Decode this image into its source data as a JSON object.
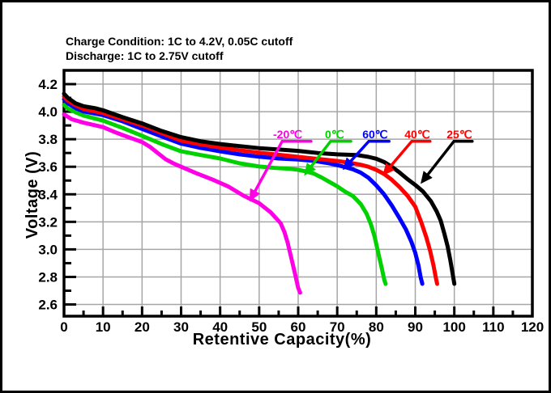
{
  "frame": {
    "border_color": "#000000",
    "background": "#ffffff"
  },
  "title": {
    "line1": "Charge Condition: 1C to 4.2V, 0.05C cutoff",
    "line2": "Discharge: 1C to 2.75V cutoff"
  },
  "chart_data": {
    "type": "line",
    "xlabel": "Retentive Capacity(%)",
    "ylabel": "Voltage (V)",
    "xlim": [
      0,
      120
    ],
    "ylim": [
      2.515,
      4.3
    ],
    "x_ticks": [
      0,
      10,
      20,
      30,
      40,
      50,
      60,
      70,
      80,
      90,
      100,
      110,
      120
    ],
    "x_minor_tick_step": 5,
    "y_ticks": [
      2.6,
      2.8,
      3.0,
      3.2,
      3.4,
      3.6,
      3.8,
      4.0,
      4.2
    ],
    "y_tick_labels": [
      "2.6",
      "2.8",
      "3.0",
      "3.2",
      "3.4",
      "3.6",
      "3.8",
      "4.0",
      "4.2"
    ],
    "y_minor_tick_step": 0.1,
    "grid": {
      "show": true,
      "color": "#a6a6a6",
      "x_step": 10,
      "y_step": 0.2
    },
    "axis_color": "#000000",
    "series": [
      {
        "id": "minus20c",
        "name": "-20℃",
        "color": "#ff00e6",
        "label_color": "#ff00e6",
        "annotation": {
          "text": "-20℃",
          "text_pos": [
            57.3,
            3.806
          ],
          "line": [
            [
              63.3,
              3.785
            ],
            [
              55.9,
              3.785
            ],
            [
              47.5,
              3.347
            ]
          ]
        },
        "points": [
          [
            0,
            3.98
          ],
          [
            2,
            3.945
          ],
          [
            5,
            3.92
          ],
          [
            10,
            3.888
          ],
          [
            13,
            3.852
          ],
          [
            15,
            3.83
          ],
          [
            18,
            3.8
          ],
          [
            20,
            3.78
          ],
          [
            22,
            3.745
          ],
          [
            24,
            3.7
          ],
          [
            26,
            3.655
          ],
          [
            28,
            3.625
          ],
          [
            30,
            3.6
          ],
          [
            34,
            3.552
          ],
          [
            38,
            3.508
          ],
          [
            42,
            3.458
          ],
          [
            46,
            3.39
          ],
          [
            50,
            3.335
          ],
          [
            53,
            3.268
          ],
          [
            55.5,
            3.19
          ],
          [
            56.5,
            3.125
          ],
          [
            57.3,
            3.048
          ],
          [
            58.3,
            2.93
          ],
          [
            59.3,
            2.81
          ],
          [
            60,
            2.72
          ],
          [
            60.5,
            2.686
          ]
        ]
      },
      {
        "id": "0c",
        "name": "0℃",
        "color": "#00d200",
        "label_color": "#00d200",
        "annotation": {
          "text": "0℃",
          "text_pos": [
            69.3,
            3.806
          ],
          "line": [
            [
              73.5,
              3.785
            ],
            [
              68.3,
              3.785
            ],
            [
              61.5,
              3.535
            ]
          ]
        },
        "points": [
          [
            0,
            4.05
          ],
          [
            1,
            4.022
          ],
          [
            3,
            3.995
          ],
          [
            5,
            3.972
          ],
          [
            10,
            3.935
          ],
          [
            15,
            3.882
          ],
          [
            20,
            3.825
          ],
          [
            25,
            3.765
          ],
          [
            30,
            3.712
          ],
          [
            35,
            3.685
          ],
          [
            40,
            3.66
          ],
          [
            45,
            3.625
          ],
          [
            50,
            3.602
          ],
          [
            54,
            3.592
          ],
          [
            58,
            3.585
          ],
          [
            60,
            3.578
          ],
          [
            62,
            3.566
          ],
          [
            64,
            3.55
          ],
          [
            66,
            3.522
          ],
          [
            68,
            3.49
          ],
          [
            70,
            3.458
          ],
          [
            72,
            3.42
          ],
          [
            74,
            3.388
          ],
          [
            76,
            3.33
          ],
          [
            77.5,
            3.26
          ],
          [
            78.6,
            3.185
          ],
          [
            79.6,
            3.09
          ],
          [
            80.6,
            2.965
          ],
          [
            81.4,
            2.865
          ],
          [
            82.1,
            2.775
          ],
          [
            82.4,
            2.75
          ]
        ]
      },
      {
        "id": "60c",
        "name": "60℃",
        "color": "#0000ff",
        "label_color": "#0000ff",
        "annotation": {
          "text": "60℃",
          "text_pos": [
            79.7,
            3.806
          ],
          "line": [
            [
              83.3,
              3.785
            ],
            [
              78.1,
              3.785
            ],
            [
              71.4,
              3.576
            ]
          ]
        },
        "points": [
          [
            0,
            4.09
          ],
          [
            1,
            4.06
          ],
          [
            3,
            4.025
          ],
          [
            5,
            4.002
          ],
          [
            10,
            3.975
          ],
          [
            15,
            3.93
          ],
          [
            20,
            3.875
          ],
          [
            25,
            3.82
          ],
          [
            30,
            3.768
          ],
          [
            35,
            3.737
          ],
          [
            40,
            3.712
          ],
          [
            45,
            3.69
          ],
          [
            50,
            3.673
          ],
          [
            55,
            3.66
          ],
          [
            60,
            3.653
          ],
          [
            64,
            3.643
          ],
          [
            68,
            3.625
          ],
          [
            70,
            3.612
          ],
          [
            72,
            3.598
          ],
          [
            74,
            3.582
          ],
          [
            76,
            3.558
          ],
          [
            78,
            3.52
          ],
          [
            80,
            3.465
          ],
          [
            82,
            3.4
          ],
          [
            84,
            3.318
          ],
          [
            86,
            3.225
          ],
          [
            87.6,
            3.145
          ],
          [
            89,
            3.055
          ],
          [
            90,
            2.975
          ],
          [
            90.8,
            2.885
          ],
          [
            91.4,
            2.795
          ],
          [
            91.8,
            2.75
          ]
        ]
      },
      {
        "id": "40c",
        "name": "40℃",
        "color": "#ff0000",
        "label_color": "#ff0000",
        "annotation": {
          "text": "40℃",
          "text_pos": [
            90.5,
            3.806
          ],
          "line": [
            [
              93.8,
              3.785
            ],
            [
              89.1,
              3.785
            ],
            [
              81.6,
              3.535
            ]
          ]
        },
        "points": [
          [
            0,
            4.11
          ],
          [
            1,
            4.08
          ],
          [
            3,
            4.045
          ],
          [
            5,
            4.02
          ],
          [
            10,
            3.99
          ],
          [
            15,
            3.945
          ],
          [
            20,
            3.9
          ],
          [
            25,
            3.845
          ],
          [
            30,
            3.79
          ],
          [
            35,
            3.762
          ],
          [
            40,
            3.74
          ],
          [
            45,
            3.72
          ],
          [
            50,
            3.702
          ],
          [
            55,
            3.687
          ],
          [
            60,
            3.672
          ],
          [
            65,
            3.657
          ],
          [
            70,
            3.642
          ],
          [
            73,
            3.63
          ],
          [
            76,
            3.615
          ],
          [
            78,
            3.6
          ],
          [
            80,
            3.578
          ],
          [
            82,
            3.548
          ],
          [
            84,
            3.505
          ],
          [
            86,
            3.452
          ],
          [
            88,
            3.39
          ],
          [
            90,
            3.31
          ],
          [
            91.5,
            3.2
          ],
          [
            92.8,
            3.09
          ],
          [
            93.8,
            2.99
          ],
          [
            94.7,
            2.88
          ],
          [
            95.3,
            2.79
          ],
          [
            95.6,
            2.75
          ]
        ]
      },
      {
        "id": "25c",
        "name": "25℃",
        "color": "#000000",
        "label_color": "#ff0000",
        "annotation": {
          "text": "25℃",
          "text_pos": [
            101.3,
            3.806
          ],
          "line": [
            [
              104.6,
              3.785
            ],
            [
              99.9,
              3.785
            ],
            [
              91.35,
              3.476
            ]
          ]
        },
        "points": [
          [
            0,
            4.13
          ],
          [
            1,
            4.1
          ],
          [
            3,
            4.06
          ],
          [
            5,
            4.04
          ],
          [
            8,
            4.025
          ],
          [
            10,
            4.01
          ],
          [
            15,
            3.96
          ],
          [
            20,
            3.915
          ],
          [
            25,
            3.86
          ],
          [
            30,
            3.815
          ],
          [
            35,
            3.785
          ],
          [
            40,
            3.765
          ],
          [
            45,
            3.75
          ],
          [
            50,
            3.735
          ],
          [
            55,
            3.725
          ],
          [
            60,
            3.715
          ],
          [
            65,
            3.7
          ],
          [
            70,
            3.69
          ],
          [
            75,
            3.685
          ],
          [
            78,
            3.672
          ],
          [
            80,
            3.658
          ],
          [
            82,
            3.635
          ],
          [
            84,
            3.6
          ],
          [
            86,
            3.558
          ],
          [
            88,
            3.51
          ],
          [
            90,
            3.468
          ],
          [
            92,
            3.42
          ],
          [
            94,
            3.35
          ],
          [
            95.5,
            3.275
          ],
          [
            96.5,
            3.21
          ],
          [
            97.5,
            3.11
          ],
          [
            98.3,
            3.02
          ],
          [
            99,
            2.92
          ],
          [
            99.6,
            2.82
          ],
          [
            100,
            2.75
          ]
        ]
      }
    ]
  }
}
